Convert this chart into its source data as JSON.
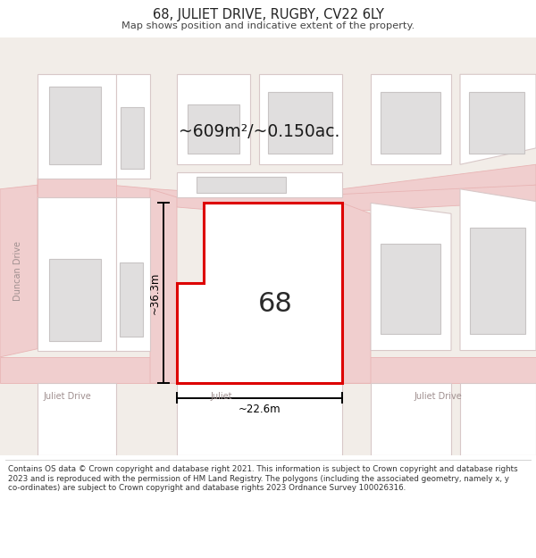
{
  "title_line1": "68, JULIET DRIVE, RUGBY, CV22 6LY",
  "title_line2": "Map shows position and indicative extent of the property.",
  "area_label": "~609m²/~0.150ac.",
  "property_number": "68",
  "dim_height": "~36.3m",
  "dim_width": "~22.6m",
  "footer_text": "Contains OS data © Crown copyright and database right 2021. This information is subject to Crown copyright and database rights 2023 and is reproduced with the permission of HM Land Registry. The polygons (including the associated geometry, namely x, y co-ordinates) are subject to Crown copyright and database rights 2023 Ordnance Survey 100026316.",
  "map_bg": "#f2ede8",
  "road_fill": "#f0cece",
  "road_edge": "#e8b4b4",
  "plot_fill": "#ffffff",
  "plot_edge": "#d8c8c8",
  "building_fill": "#e0dede",
  "building_edge": "#c8c4c4",
  "highlight_fill": "#ffffff",
  "highlight_edge": "#dd0000",
  "highlight_lw": 2.2,
  "street_color": "#a09090",
  "dim_color": "#000000",
  "title_color": "#222222",
  "subtitle_color": "#444444",
  "footer_color": "#333333"
}
